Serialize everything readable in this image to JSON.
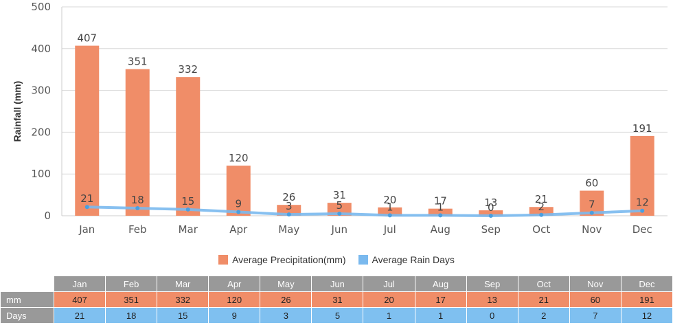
{
  "colors": {
    "precipitation": "#f08d68",
    "rain_days": "#7ab9ee",
    "grid": "#d9d9d9",
    "table_header": "#999999"
  },
  "chart_data": {
    "type": "bar",
    "categories": [
      "Jan",
      "Feb",
      "Mar",
      "Apr",
      "May",
      "Jun",
      "Jul",
      "Aug",
      "Sep",
      "Oct",
      "Nov",
      "Dec"
    ],
    "series": [
      {
        "name": "Average Precipitation(mm)",
        "type": "bar",
        "values": [
          407,
          351,
          332,
          120,
          26,
          31,
          20,
          17,
          13,
          21,
          60,
          191
        ]
      },
      {
        "name": "Average Rain Days",
        "type": "line",
        "values": [
          21,
          18,
          15,
          9,
          3,
          5,
          1,
          1,
          0,
          2,
          7,
          12
        ]
      }
    ],
    "ylabel": "Rainfall (mm)",
    "ylim": [
      0,
      500
    ],
    "yticks": [
      0,
      100,
      200,
      300,
      400,
      500
    ],
    "grid": true,
    "legend_position": "bottom-center"
  },
  "legend": {
    "precip_label": "Average Precipitation(mm)",
    "days_label": "Average Rain Days"
  },
  "table": {
    "months": [
      "Jan",
      "Feb",
      "Mar",
      "Apr",
      "May",
      "Jun",
      "Jul",
      "Aug",
      "Sep",
      "Oct",
      "Nov",
      "Dec"
    ],
    "precip_row_label": "mm",
    "days_row_label": "Days",
    "precip": [
      "407",
      "351",
      "332",
      "120",
      "26",
      "31",
      "20",
      "17",
      "13",
      "21",
      "60",
      "191"
    ],
    "days": [
      "21",
      "18",
      "15",
      "9",
      "3",
      "5",
      "1",
      "1",
      "0",
      "2",
      "7",
      "12"
    ]
  }
}
